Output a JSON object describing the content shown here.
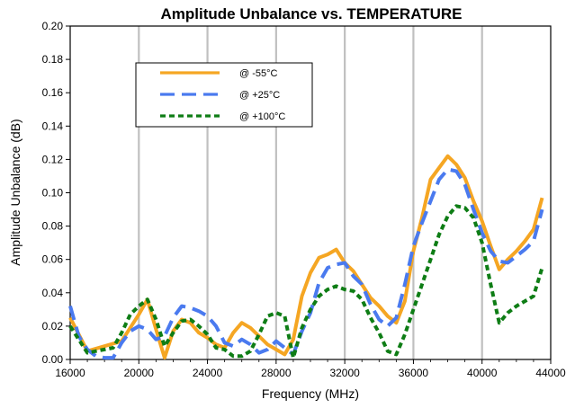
{
  "chart_data": {
    "type": "line",
    "title": "Amplitude Unbalance vs. TEMPERATURE",
    "xlabel": "Frequency (MHz)",
    "ylabel": "Amplitude Unbalance (dB)",
    "xlim": [
      16000,
      44000
    ],
    "ylim": [
      0,
      0.2
    ],
    "xticks": [
      16000,
      20000,
      24000,
      28000,
      32000,
      36000,
      40000,
      44000
    ],
    "xtick_labels": [
      "16000",
      "20000",
      "24000",
      "28000",
      "32000",
      "36000",
      "40000",
      "44000"
    ],
    "yticks": [
      0,
      0.02,
      0.04,
      0.06,
      0.08,
      0.1,
      0.12,
      0.14,
      0.16,
      0.18,
      0.2
    ],
    "ytick_labels": [
      "0.00",
      "0.02",
      "0.04",
      "0.06",
      "0.08",
      "0.10",
      "0.12",
      "0.14",
      "0.16",
      "0.18",
      "0.20"
    ],
    "grid": "vertical",
    "legend_position": "top-left",
    "series": [
      {
        "name": "@ -55°C",
        "color": "#f5a623",
        "style": "solid",
        "x": [
          16000,
          17000,
          18000,
          19000,
          20000,
          20500,
          21000,
          21500,
          22000,
          22500,
          23000,
          23500,
          24000,
          24500,
          25000,
          25500,
          26000,
          26500,
          27000,
          27500,
          28000,
          28500,
          29000,
          29500,
          30000,
          30500,
          31000,
          31500,
          32000,
          32500,
          33000,
          33500,
          34000,
          34500,
          35000,
          35500,
          36000,
          36500,
          37000,
          37500,
          38000,
          38500,
          39000,
          39500,
          40000,
          40500,
          41000,
          41500,
          42000,
          42500,
          43000,
          43500
        ],
        "y": [
          0.025,
          0.005,
          0.008,
          0.011,
          0.027,
          0.036,
          0.018,
          0.001,
          0.017,
          0.024,
          0.022,
          0.016,
          0.013,
          0.009,
          0.007,
          0.016,
          0.022,
          0.019,
          0.014,
          0.009,
          0.006,
          0.003,
          0.012,
          0.038,
          0.052,
          0.061,
          0.063,
          0.066,
          0.058,
          0.053,
          0.045,
          0.037,
          0.032,
          0.026,
          0.022,
          0.035,
          0.065,
          0.085,
          0.108,
          0.115,
          0.122,
          0.117,
          0.109,
          0.095,
          0.083,
          0.068,
          0.054,
          0.06,
          0.065,
          0.071,
          0.078,
          0.097
        ]
      },
      {
        "name": "@ +25°C",
        "color": "#4a7aef",
        "style": "dashed",
        "x": [
          16000,
          16500,
          17000,
          17500,
          18000,
          18500,
          19000,
          19500,
          20000,
          20500,
          21000,
          21500,
          22000,
          22500,
          23000,
          23500,
          24000,
          24500,
          25000,
          25500,
          26000,
          26500,
          27000,
          27500,
          28000,
          28500,
          29000,
          29500,
          30000,
          30500,
          31000,
          31500,
          32000,
          32500,
          33000,
          33500,
          34000,
          34500,
          35000,
          35500,
          36000,
          36500,
          37000,
          37500,
          38000,
          38500,
          39000,
          39500,
          40000,
          40500,
          41000,
          41500,
          42000,
          42500,
          43000,
          43500
        ],
        "y": [
          0.032,
          0.014,
          0.006,
          0.002,
          0.001,
          0.001,
          0.01,
          0.017,
          0.02,
          0.018,
          0.012,
          0.014,
          0.025,
          0.032,
          0.031,
          0.029,
          0.026,
          0.02,
          0.01,
          0.008,
          0.012,
          0.009,
          0.004,
          0.006,
          0.011,
          0.007,
          0.003,
          0.017,
          0.028,
          0.046,
          0.055,
          0.057,
          0.058,
          0.05,
          0.045,
          0.033,
          0.024,
          0.02,
          0.025,
          0.045,
          0.068,
          0.082,
          0.095,
          0.108,
          0.114,
          0.113,
          0.105,
          0.09,
          0.076,
          0.065,
          0.059,
          0.058,
          0.062,
          0.066,
          0.071,
          0.09
        ]
      },
      {
        "name": "@ +100°C",
        "color": "#0e7d15",
        "style": "dotted",
        "x": [
          16000,
          16500,
          17000,
          17500,
          18000,
          18500,
          19000,
          19500,
          20000,
          20500,
          21000,
          21500,
          22000,
          22500,
          23000,
          23500,
          24000,
          24500,
          25000,
          25500,
          26000,
          26500,
          27000,
          27500,
          28000,
          28500,
          29000,
          29500,
          30000,
          30500,
          31000,
          31500,
          32000,
          32500,
          33000,
          33500,
          34000,
          34500,
          35000,
          35500,
          36000,
          36500,
          37000,
          37500,
          38000,
          38500,
          39000,
          39500,
          40000,
          40500,
          41000,
          41500,
          42000,
          42500,
          43000,
          43500
        ],
        "y": [
          0.02,
          0.012,
          0.004,
          0.005,
          0.006,
          0.007,
          0.016,
          0.027,
          0.032,
          0.036,
          0.024,
          0.008,
          0.016,
          0.023,
          0.024,
          0.02,
          0.015,
          0.007,
          0.006,
          0.002,
          0.002,
          0.005,
          0.015,
          0.026,
          0.028,
          0.026,
          0.001,
          0.019,
          0.03,
          0.038,
          0.042,
          0.044,
          0.042,
          0.041,
          0.036,
          0.025,
          0.016,
          0.005,
          0.003,
          0.015,
          0.03,
          0.045,
          0.06,
          0.075,
          0.086,
          0.092,
          0.091,
          0.085,
          0.07,
          0.045,
          0.022,
          0.028,
          0.032,
          0.035,
          0.038,
          0.055
        ]
      }
    ]
  }
}
